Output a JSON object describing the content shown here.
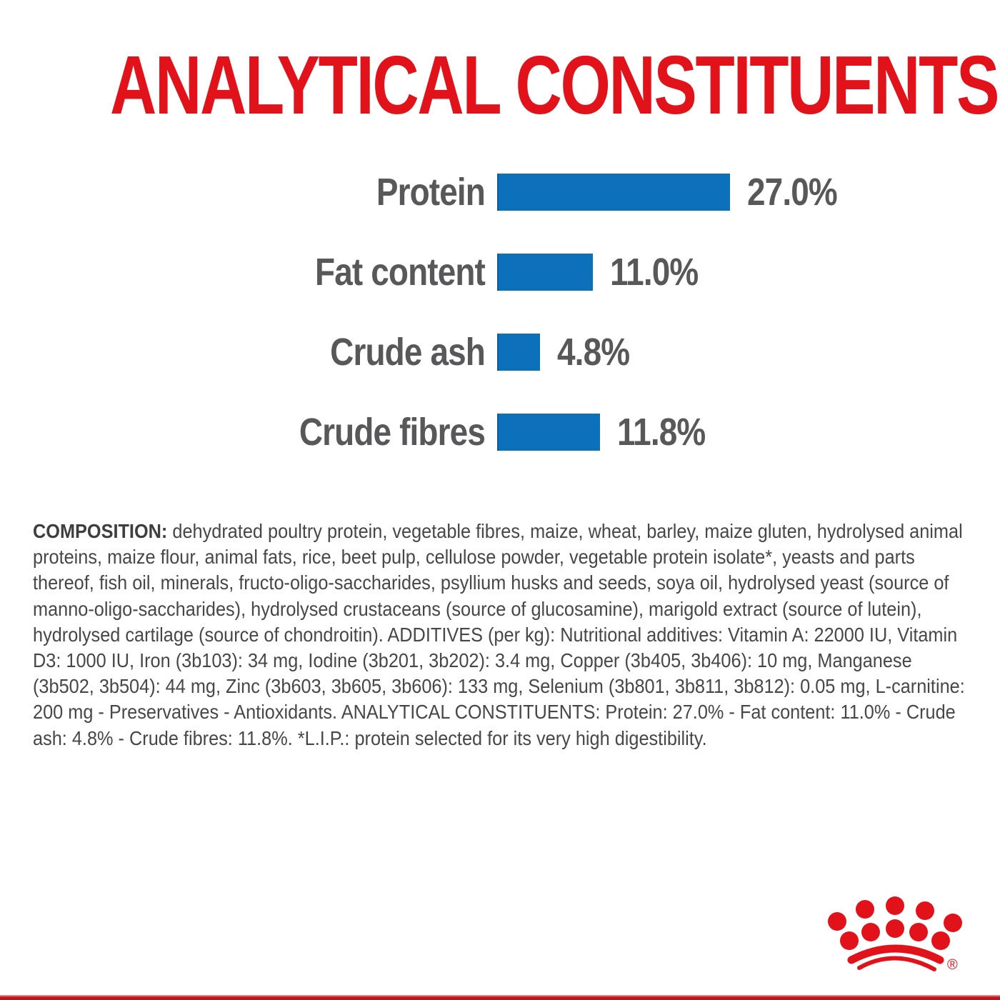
{
  "title": "ANALYTICAL CONSTITUENTS",
  "chart_data": {
    "type": "bar",
    "orientation": "horizontal",
    "categories": [
      "Protein",
      "Fat content",
      "Crude ash",
      "Crude fibres"
    ],
    "values": [
      27.0,
      11.0,
      4.8,
      11.8
    ],
    "value_labels": [
      "27.0%",
      "11.0%",
      "4.8%",
      "11.8%"
    ],
    "unit": "percent",
    "xlim": [
      0,
      27
    ],
    "grid": false,
    "legend": false,
    "bar_color": "#0d70ba",
    "text_color": "#58585a"
  },
  "composition": {
    "label": "COMPOSITION:",
    "text": " dehydrated poultry protein, vegetable fibres, maize, wheat, barley, maize gluten, hydrolysed animal proteins, maize flour, animal fats, rice, beet pulp, cellulose powder, vegetable protein isolate*, yeasts and parts thereof, fish oil, minerals, fructo-oligo-saccharides, psyllium husks and seeds, soya oil, hydrolysed yeast (source of manno-oligo-saccharides), hydrolysed crustaceans (source of glucosamine), marigold extract (source of lutein), hydrolysed cartilage (source of chondroitin). ADDITIVES (per kg): Nutritional additives: Vitamin A: 22000 IU, Vitamin D3: 1000 IU, Iron (3b103): 34 mg, Iodine (3b201, 3b202): 3.4 mg, Copper (3b405, 3b406): 10 mg, Manganese (3b502, 3b504): 44 mg, Zinc (3b603, 3b605, 3b606): 133 mg, Selenium (3b801, 3b811, 3b812): 0.05 mg, L-carnitine: 200 mg - Preservatives - Antioxidants. ANALYTICAL CONSTITUENTS: Protein: 27.0% - Fat content: 11.0% - Crude ash: 4.8% - Crude fibres: 11.8%. *L.I.P.: protein selected for its very high digestibility."
  },
  "logo": {
    "name": "royal-canin-crown",
    "registered_symbol": "®",
    "color": "#e2121b"
  },
  "colors": {
    "title_red": "#e2121b",
    "bar_blue": "#0d70ba",
    "chart_text": "#58585a",
    "body_text": "#47474a",
    "bottom_strip": "#c3141b",
    "background": "#ffffff"
  }
}
